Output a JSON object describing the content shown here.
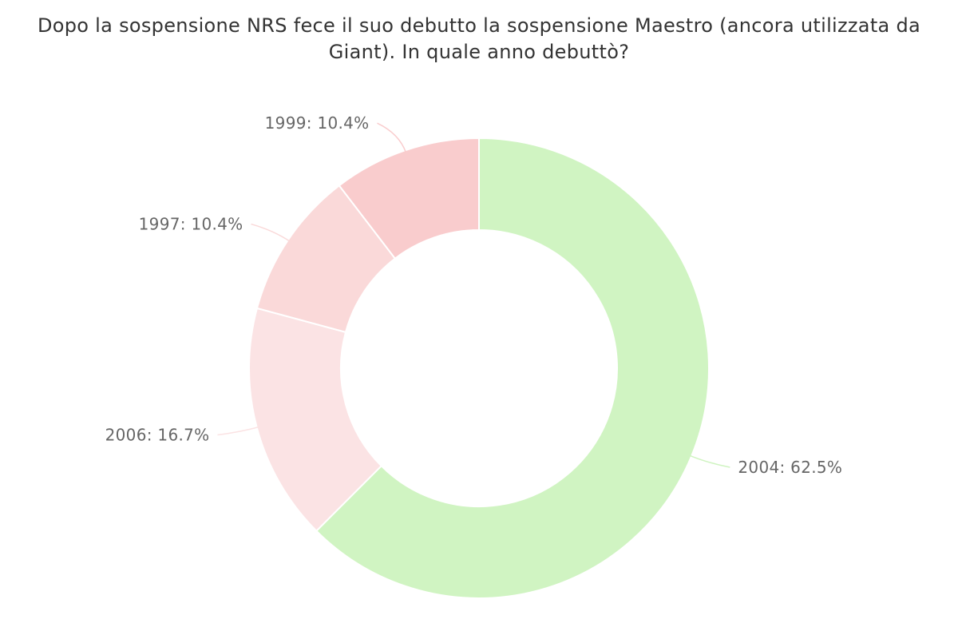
{
  "chart_data": {
    "type": "pie",
    "title": "Dopo la sospensione NRS fece il suo debutto la sospensione Maestro (ancora utilizzata da Giant). In quale anno debuttò?",
    "categories": [
      "2004",
      "2006",
      "1997",
      "1999"
    ],
    "values": [
      62.5,
      16.7,
      10.4,
      10.4
    ],
    "value_unit": "%",
    "labels": [
      "2004: 62.5%",
      "2006: 16.7%",
      "1997: 10.4%",
      "1999: 10.4%"
    ],
    "colors": [
      "#d0f4c2",
      "#fbe3e4",
      "#fad9d9",
      "#f9cccd"
    ],
    "label_color": "#666666",
    "donut": true,
    "legend": "none",
    "start_angle": "12 o'clock, clockwise"
  }
}
